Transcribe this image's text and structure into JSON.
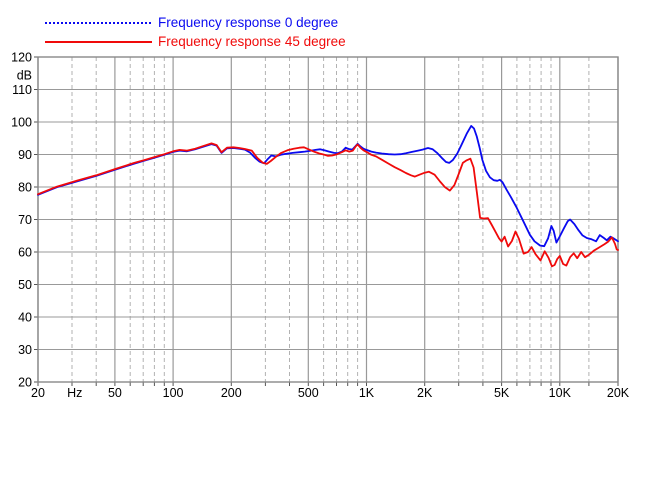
{
  "legend": {
    "items": [
      {
        "label": "Frequency response 0 degree",
        "color": "#0a0af0",
        "line_style": "dotted"
      },
      {
        "label": "Frequency response 45 degree",
        "color": "#f00a0a",
        "line_style": "solid"
      }
    ]
  },
  "chart_data": {
    "type": "line",
    "title": "",
    "x_scale": "log",
    "x_range": [
      20,
      20000
    ],
    "y_range": [
      20,
      120
    ],
    "y_tick_step": 10,
    "y_unit_label": "dB",
    "grid": "on",
    "legend_position": "top-left",
    "x_tick_labels": [
      {
        "f": 20,
        "label": "20"
      },
      {
        "f": 31,
        "label": "Hz",
        "unit": true
      },
      {
        "f": 50,
        "label": "50"
      },
      {
        "f": 100,
        "label": "100"
      },
      {
        "f": 200,
        "label": "200"
      },
      {
        "f": 500,
        "label": "500"
      },
      {
        "f": 1000,
        "label": "1K"
      },
      {
        "f": 2000,
        "label": "2K"
      },
      {
        "f": 5000,
        "label": "5K"
      },
      {
        "f": 10000,
        "label": "10K"
      },
      {
        "f": 20000,
        "label": "20K"
      }
    ],
    "grid_frequencies": [
      20,
      30,
      40,
      50,
      60,
      70,
      80,
      90,
      100,
      200,
      300,
      400,
      500,
      600,
      700,
      800,
      900,
      1000,
      2000,
      3000,
      4000,
      5000,
      6000,
      7000,
      8000,
      9000,
      10000,
      14140,
      20000
    ],
    "colors": {
      "grid_major": "#999999",
      "grid_minor": "#b2b2b2",
      "border": "#888888",
      "tick": "#555555",
      "text": "#000000"
    },
    "series": [
      {
        "name": "Frequency response 0 degree",
        "color": "#0a0af0",
        "points": [
          [
            20,
            77.6
          ],
          [
            25,
            79.9
          ],
          [
            32,
            81.8
          ],
          [
            40,
            83.4
          ],
          [
            50,
            85.3
          ],
          [
            63,
            87.2
          ],
          [
            72,
            88.2
          ],
          [
            80,
            89.0
          ],
          [
            90,
            89.9
          ],
          [
            100,
            90.8
          ],
          [
            108,
            91.2
          ],
          [
            118,
            91.0
          ],
          [
            130,
            91.6
          ],
          [
            145,
            92.5
          ],
          [
            158,
            93.2
          ],
          [
            168,
            92.7
          ],
          [
            178,
            90.5
          ],
          [
            190,
            91.9
          ],
          [
            205,
            92.0
          ],
          [
            220,
            91.8
          ],
          [
            235,
            91.5
          ],
          [
            250,
            90.6
          ],
          [
            265,
            89.0
          ],
          [
            280,
            87.8
          ],
          [
            295,
            87.3
          ],
          [
            310,
            88.7
          ],
          [
            322,
            89.7
          ],
          [
            340,
            89.4
          ],
          [
            360,
            89.9
          ],
          [
            385,
            90.2
          ],
          [
            415,
            90.5
          ],
          [
            450,
            90.7
          ],
          [
            480,
            90.9
          ],
          [
            510,
            91.1
          ],
          [
            545,
            91.4
          ],
          [
            575,
            91.6
          ],
          [
            605,
            91.3
          ],
          [
            640,
            90.9
          ],
          [
            680,
            90.5
          ],
          [
            710,
            90.4
          ],
          [
            745,
            90.9
          ],
          [
            780,
            92.1
          ],
          [
            810,
            91.7
          ],
          [
            845,
            91.5
          ],
          [
            875,
            92.5
          ],
          [
            900,
            93.3
          ],
          [
            930,
            92.5
          ],
          [
            965,
            91.8
          ],
          [
            1000,
            91.4
          ],
          [
            1060,
            90.9
          ],
          [
            1120,
            90.6
          ],
          [
            1200,
            90.3
          ],
          [
            1300,
            90.1
          ],
          [
            1400,
            90.0
          ],
          [
            1500,
            90.1
          ],
          [
            1600,
            90.4
          ],
          [
            1720,
            90.8
          ],
          [
            1850,
            91.2
          ],
          [
            1950,
            91.5
          ],
          [
            2080,
            92.0
          ],
          [
            2200,
            91.6
          ],
          [
            2320,
            90.5
          ],
          [
            2450,
            89.0
          ],
          [
            2580,
            87.7
          ],
          [
            2680,
            87.4
          ],
          [
            2800,
            88.3
          ],
          [
            2950,
            90.3
          ],
          [
            3100,
            93.0
          ],
          [
            3300,
            96.4
          ],
          [
            3480,
            98.8
          ],
          [
            3600,
            98.0
          ],
          [
            3720,
            95.5
          ],
          [
            3850,
            92.0
          ],
          [
            3980,
            88.3
          ],
          [
            4150,
            85.0
          ],
          [
            4350,
            83.0
          ],
          [
            4550,
            82.1
          ],
          [
            4750,
            81.9
          ],
          [
            4900,
            82.2
          ],
          [
            5050,
            81.5
          ],
          [
            5300,
            79.2
          ],
          [
            5600,
            76.8
          ],
          [
            6000,
            73.5
          ],
          [
            6500,
            69.3
          ],
          [
            7000,
            65.3
          ],
          [
            7400,
            63.3
          ],
          [
            7900,
            62.0
          ],
          [
            8300,
            61.8
          ],
          [
            8700,
            64.2
          ],
          [
            9050,
            68.0
          ],
          [
            9300,
            66.5
          ],
          [
            9600,
            62.9
          ],
          [
            10000,
            64.8
          ],
          [
            10500,
            67.3
          ],
          [
            11000,
            69.5
          ],
          [
            11300,
            70.0
          ],
          [
            11900,
            68.6
          ],
          [
            12500,
            66.7
          ],
          [
            13100,
            65.1
          ],
          [
            13800,
            64.3
          ],
          [
            14600,
            63.9
          ],
          [
            15400,
            63.3
          ],
          [
            16100,
            65.2
          ],
          [
            16900,
            64.3
          ],
          [
            17500,
            63.6
          ],
          [
            18300,
            64.7
          ],
          [
            19100,
            64.1
          ],
          [
            20000,
            63.3
          ]
        ]
      },
      {
        "name": "Frequency response 45 degree",
        "color": "#f00a0a",
        "points": [
          [
            20,
            77.8
          ],
          [
            25,
            80.1
          ],
          [
            32,
            82.0
          ],
          [
            40,
            83.6
          ],
          [
            50,
            85.5
          ],
          [
            63,
            87.4
          ],
          [
            72,
            88.4
          ],
          [
            80,
            89.2
          ],
          [
            90,
            90.1
          ],
          [
            100,
            91.0
          ],
          [
            108,
            91.4
          ],
          [
            118,
            91.2
          ],
          [
            130,
            91.8
          ],
          [
            145,
            92.7
          ],
          [
            158,
            93.4
          ],
          [
            168,
            92.9
          ],
          [
            178,
            90.7
          ],
          [
            190,
            92.1
          ],
          [
            205,
            92.2
          ],
          [
            220,
            92.0
          ],
          [
            235,
            91.7
          ],
          [
            255,
            91.2
          ],
          [
            272,
            89.0
          ],
          [
            290,
            87.5
          ],
          [
            305,
            87.1
          ],
          [
            320,
            88.0
          ],
          [
            340,
            89.3
          ],
          [
            362,
            90.5
          ],
          [
            390,
            91.3
          ],
          [
            420,
            91.8
          ],
          [
            450,
            92.1
          ],
          [
            475,
            92.2
          ],
          [
            505,
            91.5
          ],
          [
            540,
            90.8
          ],
          [
            570,
            90.3
          ],
          [
            600,
            90.0
          ],
          [
            630,
            89.6
          ],
          [
            665,
            89.7
          ],
          [
            705,
            90.1
          ],
          [
            745,
            90.7
          ],
          [
            780,
            91.3
          ],
          [
            815,
            90.9
          ],
          [
            850,
            91.2
          ],
          [
            878,
            92.4
          ],
          [
            900,
            93.1
          ],
          [
            930,
            92.1
          ],
          [
            965,
            91.3
          ],
          [
            1000,
            90.8
          ],
          [
            1060,
            89.9
          ],
          [
            1120,
            89.4
          ],
          [
            1200,
            88.4
          ],
          [
            1300,
            87.2
          ],
          [
            1400,
            86.1
          ],
          [
            1500,
            85.2
          ],
          [
            1600,
            84.3
          ],
          [
            1700,
            83.6
          ],
          [
            1780,
            83.2
          ],
          [
            1880,
            83.8
          ],
          [
            2000,
            84.4
          ],
          [
            2100,
            84.7
          ],
          [
            2250,
            83.8
          ],
          [
            2400,
            81.7
          ],
          [
            2550,
            79.9
          ],
          [
            2700,
            78.9
          ],
          [
            2850,
            80.6
          ],
          [
            3000,
            84.0
          ],
          [
            3150,
            87.4
          ],
          [
            3300,
            88.2
          ],
          [
            3450,
            88.7
          ],
          [
            3580,
            86.0
          ],
          [
            3720,
            78.5
          ],
          [
            3870,
            70.5
          ],
          [
            4050,
            70.3
          ],
          [
            4250,
            70.4
          ],
          [
            4450,
            68.3
          ],
          [
            4650,
            66.2
          ],
          [
            4850,
            64.2
          ],
          [
            5000,
            63.2
          ],
          [
            5180,
            64.7
          ],
          [
            5400,
            61.7
          ],
          [
            5650,
            63.4
          ],
          [
            5900,
            66.3
          ],
          [
            6150,
            64.0
          ],
          [
            6500,
            59.5
          ],
          [
            6850,
            60.0
          ],
          [
            7150,
            61.5
          ],
          [
            7500,
            59.3
          ],
          [
            7950,
            57.4
          ],
          [
            8350,
            60.2
          ],
          [
            8750,
            58.2
          ],
          [
            9100,
            55.6
          ],
          [
            9400,
            56.0
          ],
          [
            9700,
            57.8
          ],
          [
            10000,
            58.8
          ],
          [
            10400,
            56.3
          ],
          [
            10800,
            55.8
          ],
          [
            11300,
            58.4
          ],
          [
            11800,
            59.6
          ],
          [
            12300,
            58.1
          ],
          [
            12900,
            60.0
          ],
          [
            13500,
            58.4
          ],
          [
            14200,
            59.2
          ],
          [
            15000,
            60.4
          ],
          [
            16000,
            61.4
          ],
          [
            17000,
            62.4
          ],
          [
            17800,
            63.2
          ],
          [
            18600,
            64.5
          ],
          [
            19300,
            62.5
          ],
          [
            19700,
            60.8
          ],
          [
            20000,
            60.6
          ]
        ]
      }
    ]
  }
}
